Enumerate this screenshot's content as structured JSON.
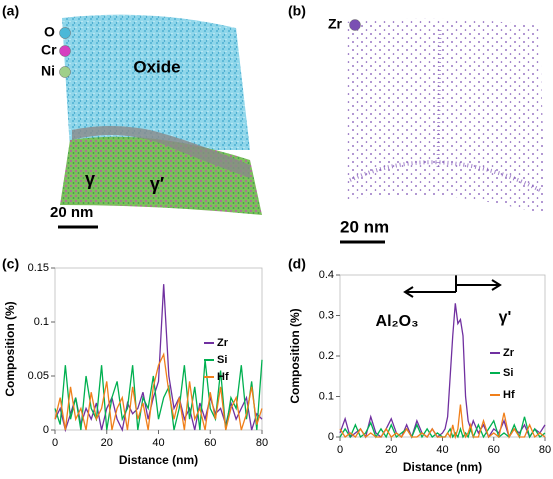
{
  "panels": {
    "a": {
      "label": "(a)",
      "legend": [
        {
          "symbol": "O",
          "color": "#4bb8d8"
        },
        {
          "symbol": "Cr",
          "color": "#d63fc0"
        },
        {
          "symbol": "Ni",
          "color": "#9fcf8a"
        }
      ],
      "phase_labels": [
        "Oxide",
        "γ",
        "γ′"
      ],
      "scale_bar": "20 nm"
    },
    "b": {
      "label": "(b)",
      "legend": [
        {
          "symbol": "Zr",
          "color": "#7a4fb3"
        }
      ],
      "scale_bar": "20 nm"
    }
  },
  "chart_data": [
    {
      "type": "line",
      "label": "(c)",
      "xlabel": "Distance (nm)",
      "ylabel": "Composition (%)",
      "x": [
        0,
        2,
        4,
        6,
        8,
        10,
        12,
        14,
        16,
        18,
        20,
        22,
        24,
        26,
        28,
        30,
        32,
        34,
        36,
        38,
        40,
        42,
        44,
        46,
        48,
        50,
        52,
        54,
        56,
        58,
        60,
        62,
        64,
        66,
        68,
        70,
        72,
        74,
        76,
        78,
        80
      ],
      "series": [
        {
          "name": "Zr",
          "color": "#7030a0",
          "values": [
            0.01,
            0.02,
            0.0,
            0.015,
            0.03,
            0.005,
            0.02,
            0.01,
            0.025,
            0.0,
            0.02,
            0.03,
            0.01,
            0.0,
            0.025,
            0.015,
            0.02,
            0.035,
            0.01,
            0.03,
            0.045,
            0.135,
            0.05,
            0.02,
            0.03,
            0.01,
            0.02,
            0.0,
            0.025,
            0.01,
            0.03,
            0.015,
            0.02,
            0.005,
            0.025,
            0.01,
            0.02,
            0.03,
            0.0,
            0.015,
            0.01
          ]
        },
        {
          "name": "Si",
          "color": "#00b050",
          "values": [
            0.02,
            0.005,
            0.06,
            0.01,
            0.03,
            0.0,
            0.05,
            0.02,
            0.01,
            0.06,
            0.0,
            0.03,
            0.045,
            0.01,
            0.02,
            0.06,
            0.0,
            0.03,
            0.02,
            0.05,
            0.01,
            0.03,
            0.04,
            0.0,
            0.02,
            0.06,
            0.01,
            0.04,
            0.0,
            0.065,
            0.02,
            0.01,
            0.055,
            0.0,
            0.03,
            0.02,
            0.06,
            0.01,
            0.045,
            0.0,
            0.065
          ]
        },
        {
          "name": "Hf",
          "color": "#f07f1a",
          "values": [
            0.01,
            0.03,
            0.0,
            0.04,
            0.01,
            0.02,
            0.0,
            0.035,
            0.01,
            0.02,
            0.045,
            0.0,
            0.02,
            0.03,
            0.0,
            0.04,
            0.01,
            0.025,
            0.0,
            0.04,
            0.06,
            0.07,
            0.035,
            0.01,
            0.03,
            0.0,
            0.045,
            0.01,
            0.02,
            0.0,
            0.035,
            0.01,
            0.04,
            0.0,
            0.02,
            0.03,
            0.0,
            0.015,
            0.04,
            0.005,
            0.02
          ]
        }
      ],
      "xlim": [
        0,
        80
      ],
      "xticks": [
        0,
        20,
        40,
        60,
        80
      ],
      "ylim": [
        0,
        0.15
      ],
      "yticks": [
        0,
        0.05,
        0.1,
        0.15
      ],
      "legend": "right"
    },
    {
      "type": "line",
      "label": "(d)",
      "xlabel": "Distance (nm)",
      "ylabel": "Composition (%)",
      "annotations": [
        "Al₂O₃",
        "γ'"
      ],
      "x": [
        0,
        2,
        4,
        6,
        8,
        10,
        12,
        14,
        16,
        18,
        20,
        22,
        24,
        26,
        28,
        30,
        32,
        34,
        36,
        38,
        40,
        41,
        42,
        43,
        44,
        45,
        46,
        47,
        48,
        49,
        50,
        51,
        52,
        54,
        56,
        58,
        60,
        62,
        64,
        66,
        68,
        70,
        72,
        74,
        76,
        78,
        80
      ],
      "series": [
        {
          "name": "Zr",
          "color": "#7030a0",
          "values": [
            0.01,
            0.045,
            0.0,
            0.01,
            0.02,
            0.0,
            0.05,
            0.01,
            0.0,
            0.02,
            0.045,
            0.01,
            0.0,
            0.03,
            0.0,
            0.04,
            0.01,
            0.0,
            0.02,
            0.0,
            0.01,
            0.02,
            0.05,
            0.15,
            0.25,
            0.33,
            0.28,
            0.29,
            0.25,
            0.1,
            0.04,
            0.02,
            0.04,
            0.01,
            0.03,
            0.0,
            0.02,
            0.01,
            0.04,
            0.0,
            0.02,
            0.01,
            0.03,
            0.0,
            0.02,
            0.01,
            0.03
          ]
        },
        {
          "name": "Si",
          "color": "#00b050",
          "values": [
            0.0,
            0.02,
            0.0,
            0.03,
            0.0,
            0.01,
            0.035,
            0.0,
            0.02,
            0.0,
            0.03,
            0.0,
            0.01,
            0.02,
            0.0,
            0.03,
            0.0,
            0.02,
            0.0,
            0.01,
            0.0,
            0.0,
            0.01,
            0.02,
            0.0,
            0.01,
            0.0,
            0.02,
            0.0,
            0.01,
            0.0,
            0.02,
            0.0,
            0.03,
            0.0,
            0.02,
            0.04,
            0.0,
            0.01,
            0.0,
            0.03,
            0.0,
            0.05,
            0.0,
            0.02,
            0.0,
            0.01
          ]
        },
        {
          "name": "Hf",
          "color": "#f07f1a",
          "values": [
            0.02,
            0.0,
            0.01,
            0.0,
            0.02,
            0.0,
            0.01,
            0.0,
            0.0,
            0.02,
            0.0,
            0.01,
            0.0,
            0.02,
            0.0,
            0.0,
            0.01,
            0.0,
            0.02,
            0.0,
            0.0,
            0.0,
            0.01,
            0.0,
            0.03,
            0.0,
            0.02,
            0.08,
            0.02,
            0.0,
            0.01,
            0.03,
            0.0,
            0.0,
            0.04,
            0.0,
            0.01,
            0.0,
            0.06,
            0.0,
            0.02,
            0.0,
            0.0,
            0.03,
            0.0,
            0.01,
            0.0
          ]
        }
      ],
      "xlim": [
        0,
        80
      ],
      "xticks": [
        0,
        20,
        40,
        60,
        80
      ],
      "ylim": [
        0,
        0.4
      ],
      "yticks": [
        0,
        0.1,
        0.2,
        0.3,
        0.4
      ],
      "legend": "right"
    }
  ]
}
